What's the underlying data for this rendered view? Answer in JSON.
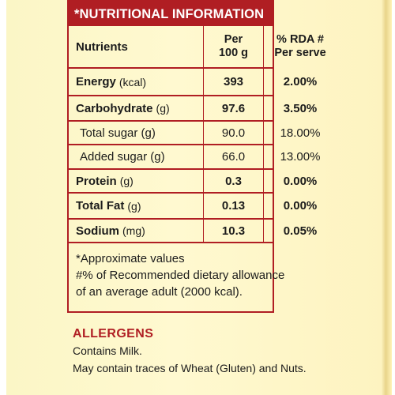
{
  "header": "*NUTRITIONAL INFORMATION",
  "columns": {
    "nutrients": "Nutrients",
    "per_line1": "Per",
    "per_line2": "100 g",
    "rda_line1": "% RDA #",
    "rda_line2": "Per serve"
  },
  "rows": [
    {
      "name": "Energy",
      "unit": "(kcal)",
      "per100g": "393",
      "rda": "2.00%"
    },
    {
      "name": "Carbohydrate",
      "unit": "(g)",
      "per100g": "97.6",
      "rda": "3.50%"
    },
    {
      "name": "Total sugar (g)",
      "unit": "",
      "per100g": "90.0",
      "rda": "18.00%"
    },
    {
      "name": "Added sugar (g)",
      "unit": "",
      "per100g": "66.0",
      "rda": "13.00%"
    },
    {
      "name": "Protein",
      "unit": "(g)",
      "per100g": "0.3",
      "rda": "0.00%"
    },
    {
      "name": "Total Fat",
      "unit": "(g)",
      "per100g": "0.13",
      "rda": "0.00%"
    },
    {
      "name": "Sodium",
      "unit": "(mg)",
      "per100g": "10.3",
      "rda": "0.05%"
    }
  ],
  "footnotes": [
    "*Approximate values",
    "#% of Recommended dietary allowance",
    "of an average adult (2000 kcal)."
  ],
  "allergens": {
    "title": "ALLERGENS",
    "line1": "Contains Milk.",
    "line2": "May contain traces of Wheat (Gluten) and Nuts."
  },
  "colors": {
    "accent": "#b01e23",
    "background": "#fff9d0"
  }
}
